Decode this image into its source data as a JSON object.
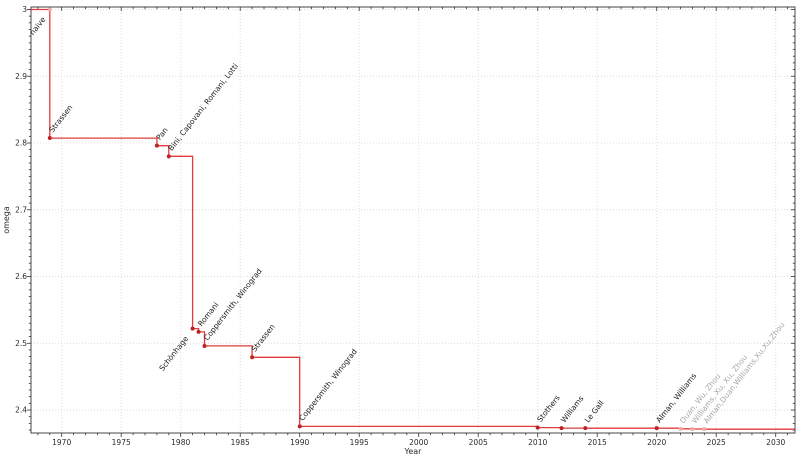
{
  "figure": {
    "background": "#ffffff"
  },
  "chart_data": {
    "type": "line",
    "step": true,
    "title": "",
    "xlabel": "Year",
    "ylabel": "omega",
    "xlim": [
      1967.42,
      2031.62
    ],
    "ylim": [
      2.3656,
      3.0037
    ],
    "x_major_ticks": [
      1970,
      1975,
      1980,
      1985,
      1990,
      1995,
      2000,
      2005,
      2010,
      2015,
      2020,
      2025,
      2030
    ],
    "x_major_tick_labels": [
      "1970",
      "1975",
      "1980",
      "1985",
      "1990",
      "1995",
      "2000",
      "2005",
      "2010",
      "2015",
      "2020",
      "2025",
      "2030"
    ],
    "y_major_ticks": [
      3.0,
      2.9,
      2.8,
      2.7,
      2.6,
      2.5,
      2.4
    ],
    "y_major_tick_labels": [
      "3",
      "2.9",
      "2.8",
      "2.7",
      "2.6",
      "2.5",
      "2.4"
    ],
    "x_minor_tick_step": 1,
    "y_minor_tick_step": 0.01,
    "grid": {
      "show": true,
      "style": "dotted",
      "on": "major"
    },
    "legend": {
      "show": false
    },
    "label_rotation_deg": -52,
    "points": [
      {
        "year": 1969,
        "omega": 3.0,
        "label": "naive",
        "label_placement": "below",
        "marker_style": "light",
        "label_style": "dark"
      },
      {
        "year": 1969,
        "omega": 2.8074,
        "label": "Strassen",
        "label_placement": "above",
        "marker_style": "solid",
        "label_style": "dark"
      },
      {
        "year": 1978,
        "omega": 2.796,
        "label": "Pan",
        "label_placement": "above",
        "marker_style": "solid",
        "label_style": "dark"
      },
      {
        "year": 1979,
        "omega": 2.78,
        "label": "Bini, Capovani, Romani, Lotti",
        "label_placement": "above",
        "marker_style": "solid",
        "label_style": "dark"
      },
      {
        "year": 1981,
        "omega": 2.522,
        "label": "Schönhage",
        "label_placement": "below",
        "marker_style": "solid",
        "label_style": "dark"
      },
      {
        "year": 1981.5,
        "omega": 2.517,
        "label": "Romani",
        "label_placement": "above",
        "marker_style": "solid",
        "label_style": "dark"
      },
      {
        "year": 1982,
        "omega": 2.496,
        "label": "Coppersmith, Winograd",
        "label_placement": "above",
        "marker_style": "solid",
        "label_style": "dark"
      },
      {
        "year": 1986,
        "omega": 2.479,
        "label": "Strassen",
        "label_placement": "above",
        "marker_style": "solid",
        "label_style": "dark"
      },
      {
        "year": 1990,
        "omega": 2.3755,
        "label": "Coppersmith, Winograd",
        "label_placement": "above",
        "marker_style": "solid",
        "label_style": "dark"
      },
      {
        "year": 2010,
        "omega": 2.3737,
        "label": "Stothers",
        "label_placement": "above",
        "marker_style": "solid",
        "label_style": "dark"
      },
      {
        "year": 2012,
        "omega": 2.3729,
        "label": "Williams",
        "label_placement": "above",
        "marker_style": "solid",
        "label_style": "dark"
      },
      {
        "year": 2014,
        "omega": 2.37286,
        "label": "Le Gall",
        "label_placement": "above",
        "marker_style": "solid",
        "label_style": "dark"
      },
      {
        "year": 2020,
        "omega": 2.372859,
        "label": "Alman, Williams",
        "label_placement": "above",
        "marker_style": "solid",
        "label_style": "dark"
      },
      {
        "year": 2022,
        "omega": 2.371866,
        "label": "Duan, Wu, Zhou",
        "label_placement": "above",
        "marker_style": "light",
        "label_style": "light"
      },
      {
        "year": 2023,
        "omega": 2.371552,
        "label": "Williams, Xu, Xu, Zhou",
        "label_placement": "above",
        "marker_style": "light",
        "label_style": "light"
      },
      {
        "year": 2024,
        "omega": 2.371339,
        "label": "Alman,Duan,Williams,Xu,Xu,Zhou",
        "label_placement": "above",
        "marker_style": "light",
        "label_style": "light"
      }
    ],
    "colors": {
      "line": "#e23b3b",
      "marker": "#bb2323",
      "marker_light": "#f2a9a9",
      "label": "#1c1c1c",
      "label_light": "#a8a8a8",
      "grid": "#dcdcdc",
      "axis": "#333333",
      "tick_label": "#2b2b2b"
    }
  }
}
